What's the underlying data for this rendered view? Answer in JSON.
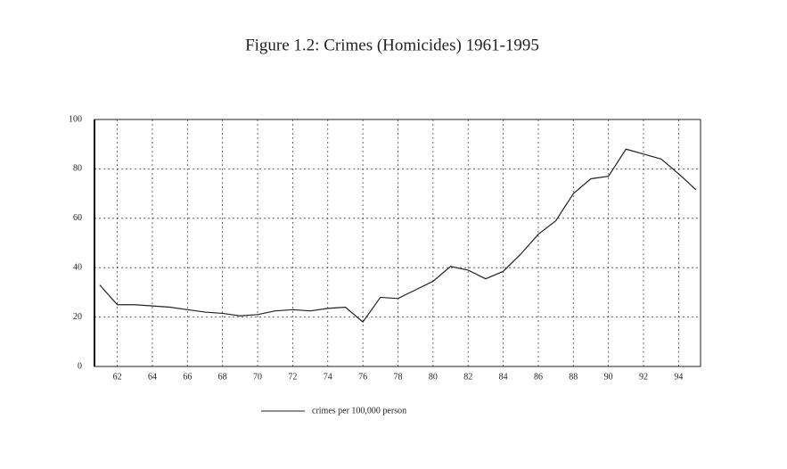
{
  "chart_data": {
    "type": "line",
    "title": "Figure 1.2: Crimes (Homicides) 1961-1995",
    "x": [
      61,
      62,
      63,
      64,
      65,
      66,
      67,
      68,
      69,
      70,
      71,
      72,
      73,
      74,
      75,
      76,
      77,
      78,
      79,
      80,
      81,
      82,
      83,
      84,
      85,
      86,
      87,
      88,
      89,
      90,
      91,
      92,
      93,
      94,
      95
    ],
    "series": [
      {
        "name": "crimes per 100,000 person",
        "color": "#222222",
        "values": [
          33,
          25,
          25,
          24.5,
          24,
          23,
          22,
          21.5,
          20.5,
          21,
          22.5,
          23,
          22.5,
          23.5,
          24,
          18,
          28,
          27.5,
          31,
          34.5,
          40.5,
          39,
          35.5,
          38.5,
          45.5,
          53.5,
          59,
          70,
          76,
          77,
          88,
          86,
          84,
          78,
          71.5
        ]
      }
    ],
    "xlim": [
      60.7,
      95.25
    ],
    "xticks": [
      62,
      64,
      66,
      68,
      70,
      72,
      74,
      76,
      78,
      80,
      82,
      84,
      86,
      88,
      90,
      92,
      94
    ],
    "ylim": [
      0,
      100
    ],
    "yticks": [
      0,
      20,
      40,
      60,
      80,
      100
    ],
    "grid": true,
    "legend": "bottom"
  }
}
